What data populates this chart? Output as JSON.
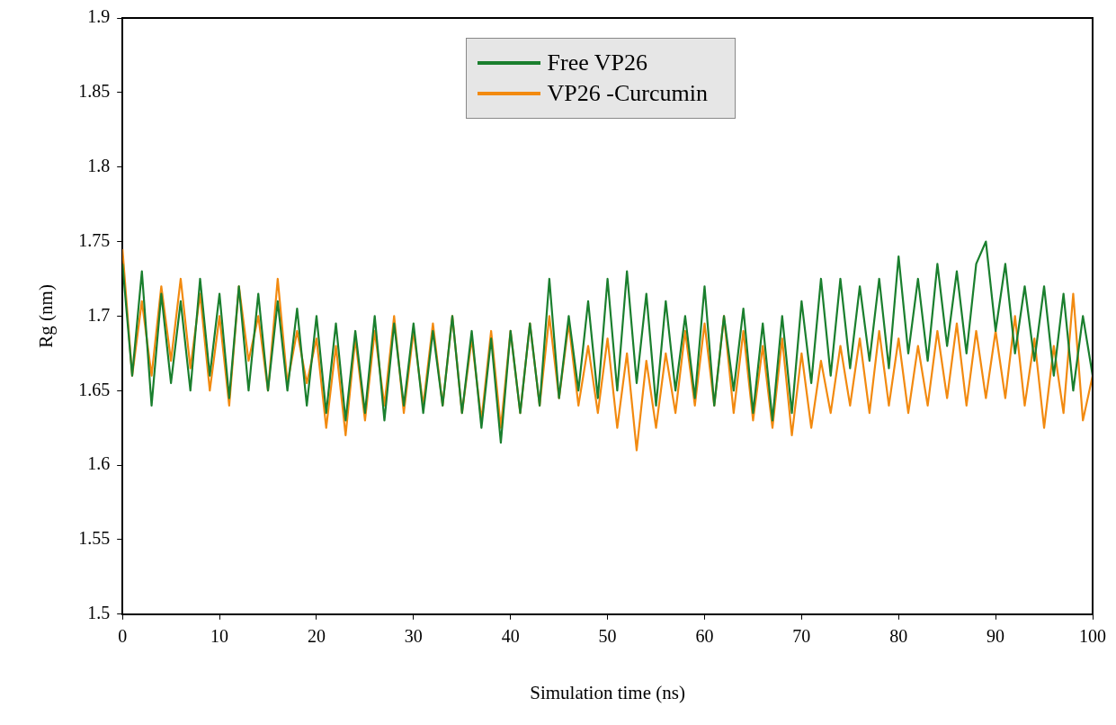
{
  "chart_data": {
    "type": "line",
    "xlabel": "Simulation time (ns)",
    "ylabel": "Rg (nm)",
    "xlim": [
      0,
      100
    ],
    "xticks": [
      0,
      10,
      20,
      30,
      40,
      50,
      60,
      70,
      80,
      90,
      100
    ],
    "ylim": [
      1.5,
      1.9
    ],
    "yticks": [
      1.5,
      1.55,
      1.6,
      1.65,
      1.7,
      1.75,
      1.8,
      1.85,
      1.9
    ],
    "grid": false,
    "legend": "top",
    "marker": "none",
    "line_style": "solid",
    "x": [
      0,
      1,
      2,
      3,
      4,
      5,
      6,
      7,
      8,
      9,
      10,
      11,
      12,
      13,
      14,
      15,
      16,
      17,
      18,
      19,
      20,
      21,
      22,
      23,
      24,
      25,
      26,
      27,
      28,
      29,
      30,
      31,
      32,
      33,
      34,
      35,
      36,
      37,
      38,
      39,
      40,
      41,
      42,
      43,
      44,
      45,
      46,
      47,
      48,
      49,
      50,
      51,
      52,
      53,
      54,
      55,
      56,
      57,
      58,
      59,
      60,
      61,
      62,
      63,
      64,
      65,
      66,
      67,
      68,
      69,
      70,
      71,
      72,
      73,
      74,
      75,
      76,
      77,
      78,
      79,
      80,
      81,
      82,
      83,
      84,
      85,
      86,
      87,
      88,
      89,
      90,
      91,
      92,
      93,
      94,
      95,
      96,
      97,
      98,
      99,
      100
    ],
    "series": [
      {
        "name": "VP26 -Curcumin",
        "color": "#f28a10",
        "values": [
          1.745,
          1.66,
          1.71,
          1.66,
          1.72,
          1.67,
          1.725,
          1.665,
          1.715,
          1.65,
          1.7,
          1.64,
          1.72,
          1.67,
          1.7,
          1.65,
          1.725,
          1.655,
          1.69,
          1.655,
          1.685,
          1.625,
          1.68,
          1.62,
          1.685,
          1.63,
          1.69,
          1.64,
          1.7,
          1.635,
          1.69,
          1.64,
          1.695,
          1.64,
          1.7,
          1.635,
          1.685,
          1.63,
          1.69,
          1.625,
          1.69,
          1.635,
          1.695,
          1.64,
          1.7,
          1.645,
          1.695,
          1.64,
          1.68,
          1.635,
          1.685,
          1.625,
          1.675,
          1.61,
          1.67,
          1.625,
          1.675,
          1.635,
          1.69,
          1.64,
          1.695,
          1.64,
          1.7,
          1.635,
          1.69,
          1.63,
          1.68,
          1.625,
          1.685,
          1.62,
          1.675,
          1.625,
          1.67,
          1.635,
          1.68,
          1.64,
          1.685,
          1.635,
          1.69,
          1.64,
          1.685,
          1.635,
          1.68,
          1.64,
          1.69,
          1.645,
          1.695,
          1.64,
          1.69,
          1.645,
          1.69,
          1.645,
          1.7,
          1.64,
          1.685,
          1.625,
          1.68,
          1.635,
          1.715,
          1.63,
          1.66
        ]
      },
      {
        "name": "Free VP26",
        "color": "#1a7f2e",
        "values": [
          1.735,
          1.66,
          1.73,
          1.64,
          1.715,
          1.655,
          1.71,
          1.65,
          1.725,
          1.66,
          1.715,
          1.645,
          1.72,
          1.65,
          1.715,
          1.65,
          1.71,
          1.65,
          1.705,
          1.64,
          1.7,
          1.635,
          1.695,
          1.63,
          1.69,
          1.635,
          1.7,
          1.63,
          1.695,
          1.64,
          1.695,
          1.635,
          1.69,
          1.64,
          1.7,
          1.635,
          1.69,
          1.625,
          1.685,
          1.615,
          1.69,
          1.635,
          1.695,
          1.64,
          1.725,
          1.645,
          1.7,
          1.65,
          1.71,
          1.645,
          1.725,
          1.65,
          1.73,
          1.655,
          1.715,
          1.64,
          1.71,
          1.65,
          1.7,
          1.645,
          1.72,
          1.64,
          1.7,
          1.65,
          1.705,
          1.635,
          1.695,
          1.63,
          1.7,
          1.635,
          1.71,
          1.655,
          1.725,
          1.66,
          1.725,
          1.665,
          1.72,
          1.67,
          1.725,
          1.665,
          1.74,
          1.675,
          1.725,
          1.67,
          1.735,
          1.68,
          1.73,
          1.675,
          1.735,
          1.75,
          1.69,
          1.735,
          1.675,
          1.72,
          1.67,
          1.72,
          1.66,
          1.715,
          1.65,
          1.7,
          1.66
        ]
      }
    ]
  }
}
